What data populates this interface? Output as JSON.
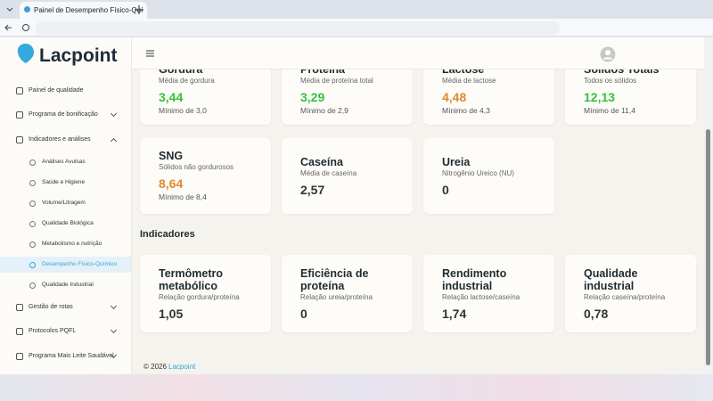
{
  "browser": {
    "tab_title": "Painel de Desempenho Físico-Quí"
  },
  "sidebar": {
    "logo": "Lacpoint",
    "menu": [
      {
        "label": "Painel de qualidade"
      },
      {
        "label": "Programa de bonificação"
      },
      {
        "label": "Indicadores e análises",
        "children": [
          "Análises Avulsas",
          "Saúde e Higiene",
          "Volume/Litragem",
          "Qualidade Biológica",
          "Metabolismo e nutrição",
          "Desempenho Físico-Químico",
          "Qualidade Industrial"
        ]
      },
      {
        "label": "Gestão de rotas"
      },
      {
        "label": "Protocolos PQFL"
      },
      {
        "label": "Programa Mais Leite Saudável"
      }
    ]
  },
  "cards": [
    {
      "title": "Gordura",
      "subtitle": "Média de gordura",
      "value": "3,44",
      "minimum": "Mínimo de 3,0"
    },
    {
      "title": "Proteína",
      "subtitle": "Média de proteína total",
      "value": "3,29",
      "minimum": "Mínimo de 2,9"
    },
    {
      "title": "Lactose",
      "subtitle": "Média de lactose",
      "value": "4,48",
      "minimum": "Mínimo de 4,3"
    },
    {
      "title": "Sólidos Totais",
      "subtitle": "Todos os sólidos",
      "value": "12,13",
      "minimum": "Mínimo de 11,4"
    },
    {
      "title": "SNG",
      "subtitle": "Sólidos não gordurosos",
      "value": "8,64",
      "minimum": "Mínimo de 8,4"
    },
    {
      "title": "Caseína",
      "subtitle": "Média de caseína",
      "value": "2,57"
    },
    {
      "title": "Ureia",
      "subtitle": "Nitrogênio Ureico (NU)",
      "value": "0"
    }
  ],
  "section_title": "Indicadores",
  "indicators": [
    {
      "title": "Termômetro metabólico",
      "subtitle": "Relação gordura/proteína",
      "value": "1,05"
    },
    {
      "title": "Eficiência de proteína",
      "subtitle": "Relação ureia/proteína",
      "value": "0"
    },
    {
      "title": "Rendimento industrial",
      "subtitle": "Relação lactose/caseína",
      "value": "1,74"
    },
    {
      "title": "Qualidade industrial",
      "subtitle": "Relação caseína/proteína",
      "value": "0,78"
    }
  ],
  "footer": {
    "copyright": "© 2026",
    "brand": "Lacpoint"
  }
}
